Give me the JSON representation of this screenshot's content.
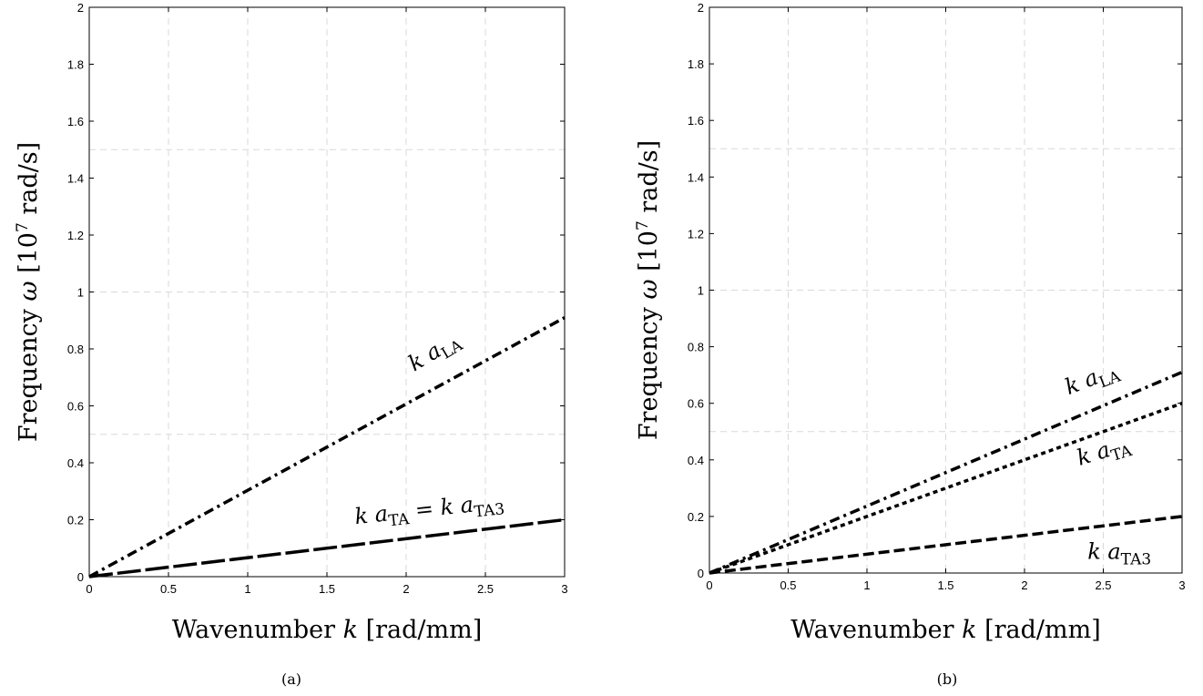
{
  "chart_data": [
    {
      "type": "line",
      "panel_label": "(a)",
      "xlabel": {
        "main": "Wavenumber",
        "var": "k",
        "unit": "[rad/mm]"
      },
      "ylabel": {
        "main": "Frequency",
        "var": "ω",
        "unit_pre": "[10",
        "unit_exp": "7",
        "unit_post": " rad/s]"
      },
      "xlim": [
        0,
        3
      ],
      "ylim": [
        0,
        2
      ],
      "xticks": [
        "0",
        "0.5",
        "1",
        "1.5",
        "2",
        "2.5",
        "3"
      ],
      "yticks": [
        "0",
        "0.2",
        "0.4",
        "0.6",
        "0.8",
        "1",
        "1.2",
        "1.4",
        "1.6",
        "1.8",
        "2"
      ],
      "grid": true,
      "series": [
        {
          "x": [
            0,
            3
          ],
          "y": [
            0,
            0.91
          ],
          "dash": "dash-dot"
        },
        {
          "x": [
            0,
            3
          ],
          "y": [
            0,
            0.2
          ],
          "dash": "long-dash"
        }
      ],
      "annotations": [
        {
          "parts": [
            {
              "t": "k a",
              "k": "v"
            },
            {
              "t": "LA",
              "k": "s"
            }
          ],
          "x": 2.05,
          "y": 0.72,
          "rotate": -31
        },
        {
          "parts": [
            {
              "t": "k a",
              "k": "v"
            },
            {
              "t": "TA",
              "k": "s"
            },
            {
              "t": " = ",
              "k": "o"
            },
            {
              "t": "k a",
              "k": "v"
            },
            {
              "t": "TA3",
              "k": "s"
            }
          ],
          "x": 1.68,
          "y": 0.185,
          "rotate": -6
        }
      ]
    },
    {
      "type": "line",
      "panel_label": "(b)",
      "xlabel": {
        "main": "Wavenumber",
        "var": "k",
        "unit": "[rad/mm]"
      },
      "ylabel": {
        "main": "Frequency",
        "var": "ω",
        "unit_pre": "[10",
        "unit_exp": "7",
        "unit_post": " rad/s]"
      },
      "xlim": [
        0,
        3
      ],
      "ylim": [
        0,
        2
      ],
      "xticks": [
        "0",
        "0.5",
        "1",
        "1.5",
        "2",
        "2.5",
        "3"
      ],
      "yticks": [
        "0",
        "0.2",
        "0.4",
        "0.6",
        "0.8",
        "1",
        "1.2",
        "1.4",
        "1.6",
        "1.8",
        "2"
      ],
      "grid": true,
      "series": [
        {
          "x": [
            0,
            3
          ],
          "y": [
            0,
            0.71
          ],
          "dash": "dash-dot"
        },
        {
          "x": [
            0,
            3
          ],
          "y": [
            0,
            0.6
          ],
          "dash": "dotted"
        },
        {
          "x": [
            0,
            3
          ],
          "y": [
            0,
            0.2
          ],
          "dash": "dashed"
        }
      ],
      "annotations": [
        {
          "parts": [
            {
              "t": "k a",
              "k": "v"
            },
            {
              "t": "LA",
              "k": "s"
            }
          ],
          "x": 2.28,
          "y": 0.63,
          "rotate": -21
        },
        {
          "parts": [
            {
              "t": "k a",
              "k": "v"
            },
            {
              "t": "TA",
              "k": "s"
            }
          ],
          "x": 2.35,
          "y": 0.38,
          "rotate": -17
        },
        {
          "parts": [
            {
              "t": "k a",
              "k": "v"
            },
            {
              "t": "TA3",
              "k": "s"
            }
          ],
          "x": 2.4,
          "y": 0.05,
          "rotate": 0
        }
      ]
    }
  ]
}
